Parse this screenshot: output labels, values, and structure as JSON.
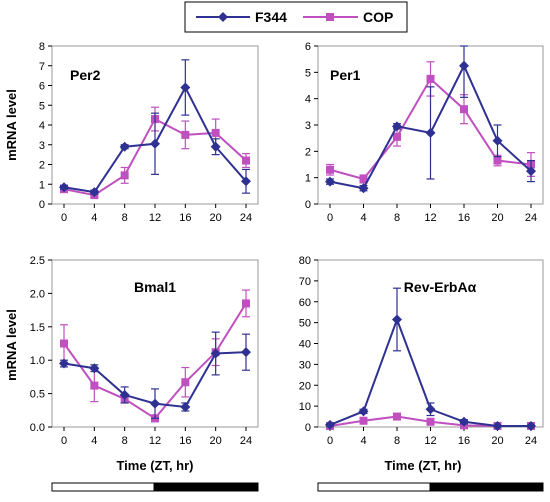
{
  "legend": {
    "items": [
      {
        "name": "F344",
        "color": "#2f3192",
        "marker": "diamond"
      },
      {
        "name": "COP",
        "color": "#c04fbf",
        "marker": "square"
      }
    ]
  },
  "axis_labels": {
    "y_top": "mRNA level",
    "y_bottom": "mRNA level",
    "x_left": "Time (ZT, hr)",
    "x_right": "Time (ZT, hr)"
  },
  "chart_data": [
    {
      "type": "line",
      "label": "Per2",
      "x": [
        0,
        4,
        8,
        12,
        16,
        20,
        24
      ],
      "xticks": [
        "0",
        "4",
        "8",
        "12",
        "16",
        "20",
        "24"
      ],
      "ylim": [
        0,
        8
      ],
      "yticks": [
        "0",
        "1",
        "2",
        "3",
        "4",
        "5",
        "6",
        "7",
        "8"
      ],
      "series": [
        {
          "name": "F344",
          "values": [
            0.85,
            0.6,
            2.9,
            3.05,
            5.9,
            2.9,
            1.15
          ],
          "errors": [
            0.1,
            0.1,
            0.1,
            1.55,
            1.4,
            0.4,
            0.6
          ]
        },
        {
          "name": "COP",
          "values": [
            0.75,
            0.45,
            1.45,
            4.3,
            3.5,
            3.6,
            2.2
          ],
          "errors": [
            0.1,
            0.1,
            0.4,
            0.6,
            0.7,
            0.7,
            0.35
          ]
        }
      ]
    },
    {
      "type": "line",
      "label": "Per1",
      "x": [
        0,
        4,
        8,
        12,
        16,
        20,
        24
      ],
      "xticks": [
        "0",
        "4",
        "8",
        "12",
        "16",
        "20",
        "24"
      ],
      "ylim": [
        0,
        6
      ],
      "yticks": [
        "0",
        "1",
        "2",
        "3",
        "4",
        "5",
        "6"
      ],
      "series": [
        {
          "name": "F344",
          "values": [
            0.85,
            0.6,
            2.95,
            2.7,
            5.25,
            2.4,
            1.25
          ],
          "errors": [
            0.1,
            0.1,
            0.1,
            1.75,
            1.2,
            0.6,
            0.4
          ]
        },
        {
          "name": "COP",
          "values": [
            1.3,
            0.95,
            2.55,
            4.75,
            3.6,
            1.65,
            1.5
          ],
          "errors": [
            0.2,
            0.15,
            0.35,
            0.65,
            0.55,
            0.2,
            0.45
          ]
        }
      ]
    },
    {
      "type": "line",
      "label": "Bmal1",
      "x": [
        0,
        4,
        8,
        12,
        16,
        20,
        24
      ],
      "xticks": [
        "0",
        "4",
        "8",
        "12",
        "16",
        "20",
        "24"
      ],
      "ylim": [
        0,
        2.5
      ],
      "yticks": [
        "0.0",
        "0.5",
        "1.0",
        "1.5",
        "2.0",
        "2.5"
      ],
      "series": [
        {
          "name": "F344",
          "values": [
            0.95,
            0.88,
            0.48,
            0.35,
            0.3,
            1.1,
            1.12
          ],
          "errors": [
            0.05,
            0.05,
            0.12,
            0.22,
            0.06,
            0.32,
            0.27
          ]
        },
        {
          "name": "COP",
          "values": [
            1.25,
            0.62,
            0.42,
            0.13,
            0.67,
            1.12,
            1.85
          ],
          "errors": [
            0.28,
            0.24,
            0.06,
            0.05,
            0.22,
            0.2,
            0.2
          ]
        }
      ]
    },
    {
      "type": "line",
      "label": "Rev-ErbAα",
      "x": [
        0,
        4,
        8,
        12,
        16,
        20,
        24
      ],
      "xticks": [
        "0",
        "4",
        "8",
        "12",
        "16",
        "20",
        "24"
      ],
      "ylim": [
        0,
        80
      ],
      "yticks": [
        "0",
        "10",
        "20",
        "30",
        "40",
        "50",
        "60",
        "70",
        "80"
      ],
      "series": [
        {
          "name": "F344",
          "values": [
            1,
            7.5,
            51.5,
            8.5,
            2.5,
            0.5,
            0.5
          ],
          "errors": [
            0.5,
            1,
            15,
            3,
            1,
            0.3,
            0.3
          ]
        },
        {
          "name": "COP",
          "values": [
            0.5,
            3,
            5,
            2.5,
            0.8,
            0.5,
            0.5
          ],
          "errors": [
            0.3,
            0.5,
            1,
            0.5,
            0.3,
            0.2,
            0.2
          ]
        }
      ]
    }
  ]
}
